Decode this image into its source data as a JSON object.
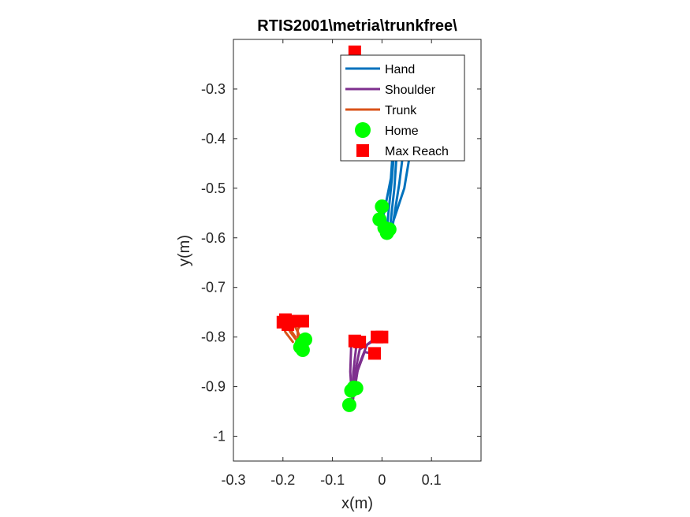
{
  "chart_data": {
    "type": "line",
    "title": "RTIS2001\\metria\\trunkfree\\",
    "xlabel": "x(m)",
    "ylabel": "y(m)",
    "xlim": [
      -0.3,
      0.2
    ],
    "ylim": [
      -1.05,
      -0.2
    ],
    "xticks": [
      -0.3,
      -0.2,
      -0.1,
      0,
      0.1
    ],
    "xtick_labels": [
      "-0.3",
      "-0.2",
      "-0.1",
      "0",
      "0.1"
    ],
    "yticks": [
      -0.3,
      -0.4,
      -0.5,
      -0.6,
      -0.7,
      -0.8,
      -0.9,
      -1.0
    ],
    "ytick_labels": [
      "-0.3",
      "-0.4",
      "-0.5",
      "-0.6",
      "-0.7",
      "-0.8",
      "-0.9",
      "-1"
    ],
    "grid": false,
    "legend_position": "top-right",
    "colors": {
      "hand": "#0072BD",
      "shoulder": "#7E2F8E",
      "trunk": "#D95319",
      "home": "#00FF00",
      "max_reach": "#FF0000"
    },
    "series": [
      {
        "name": "Hand",
        "type": "line",
        "color": "#0072BD",
        "lines": [
          [
            [
              0.015,
              -0.59
            ],
            [
              0.025,
              -0.5
            ],
            [
              0.035,
              -0.35
            ],
            [
              0.04,
              -0.27
            ]
          ],
          [
            [
              0.01,
              -0.58
            ],
            [
              0.02,
              -0.48
            ],
            [
              0.03,
              -0.36
            ],
            [
              0.035,
              -0.28
            ]
          ],
          [
            [
              0.02,
              -0.585
            ],
            [
              0.035,
              -0.49
            ],
            [
              0.05,
              -0.37
            ],
            [
              0.055,
              -0.28
            ]
          ],
          [
            [
              0.015,
              -0.59
            ],
            [
              0.045,
              -0.5
            ],
            [
              0.065,
              -0.38
            ],
            [
              0.07,
              -0.28
            ]
          ],
          [
            [
              0.0,
              -0.57
            ],
            [
              0.018,
              -0.48
            ],
            [
              0.025,
              -0.38
            ],
            [
              0.03,
              -0.29
            ]
          ]
        ]
      },
      {
        "name": "Shoulder",
        "type": "line",
        "color": "#7E2F8E",
        "lines": [
          [
            [
              -0.06,
              -0.935
            ],
            [
              -0.064,
              -0.87
            ],
            [
              -0.062,
              -0.81
            ],
            [
              -0.055,
              -0.8
            ]
          ],
          [
            [
              -0.06,
              -0.935
            ],
            [
              -0.058,
              -0.87
            ],
            [
              -0.052,
              -0.82
            ],
            [
              -0.045,
              -0.81
            ]
          ],
          [
            [
              -0.06,
              -0.935
            ],
            [
              -0.05,
              -0.87
            ],
            [
              -0.035,
              -0.83
            ],
            [
              -0.015,
              -0.835
            ]
          ],
          [
            [
              -0.06,
              -0.935
            ],
            [
              -0.048,
              -0.86
            ],
            [
              -0.03,
              -0.815
            ],
            [
              -0.01,
              -0.8
            ]
          ],
          [
            [
              -0.06,
              -0.935
            ],
            [
              -0.056,
              -0.88
            ],
            [
              -0.045,
              -0.825
            ],
            [
              -0.005,
              -0.8
            ]
          ]
        ]
      },
      {
        "name": "Trunk",
        "type": "line",
        "color": "#D95319",
        "lines": [
          [
            [
              -0.17,
              -0.81
            ],
            [
              -0.185,
              -0.79
            ],
            [
              -0.195,
              -0.77
            ]
          ],
          [
            [
              -0.175,
              -0.8
            ],
            [
              -0.188,
              -0.78
            ],
            [
              -0.2,
              -0.765
            ]
          ],
          [
            [
              -0.165,
              -0.8
            ],
            [
              -0.175,
              -0.78
            ],
            [
              -0.18,
              -0.765
            ]
          ],
          [
            [
              -0.17,
              -0.805
            ],
            [
              -0.17,
              -0.785
            ],
            [
              -0.16,
              -0.768
            ]
          ],
          [
            [
              -0.18,
              -0.81
            ],
            [
              -0.195,
              -0.79
            ],
            [
              -0.2,
              -0.775
            ]
          ]
        ]
      },
      {
        "name": "Home",
        "type": "scatter",
        "marker": "circle",
        "color": "#00FF00",
        "points": [
          [
            0.0,
            -0.537
          ],
          [
            -0.005,
            -0.563
          ],
          [
            0.005,
            -0.58
          ],
          [
            0.015,
            -0.583
          ],
          [
            0.01,
            -0.59
          ],
          [
            -0.057,
            -0.902
          ],
          [
            -0.062,
            -0.908
          ],
          [
            -0.052,
            -0.903
          ],
          [
            -0.066,
            -0.937
          ],
          [
            -0.165,
            -0.82
          ],
          [
            -0.16,
            -0.826
          ],
          [
            -0.155,
            -0.805
          ],
          [
            -0.162,
            -0.814
          ]
        ]
      },
      {
        "name": "Max Reach",
        "type": "scatter",
        "marker": "square",
        "color": "#FF0000",
        "points": [
          [
            -0.055,
            -0.808
          ],
          [
            -0.015,
            -0.833
          ],
          [
            -0.01,
            -0.8
          ],
          [
            0.0,
            -0.8
          ],
          [
            -0.045,
            -0.81
          ],
          [
            -0.2,
            -0.77
          ],
          [
            -0.195,
            -0.765
          ],
          [
            -0.18,
            -0.768
          ],
          [
            -0.16,
            -0.768
          ],
          [
            -0.19,
            -0.775
          ],
          [
            -0.055,
            -0.225
          ]
        ]
      }
    ],
    "legend": [
      {
        "label": "Hand",
        "kind": "line",
        "color": "#0072BD"
      },
      {
        "label": "Shoulder",
        "kind": "line",
        "color": "#7E2F8E"
      },
      {
        "label": "Trunk",
        "kind": "line",
        "color": "#D95319"
      },
      {
        "label": "Home",
        "kind": "circle",
        "color": "#00FF00"
      },
      {
        "label": "Max Reach",
        "kind": "square",
        "color": "#FF0000"
      }
    ]
  }
}
